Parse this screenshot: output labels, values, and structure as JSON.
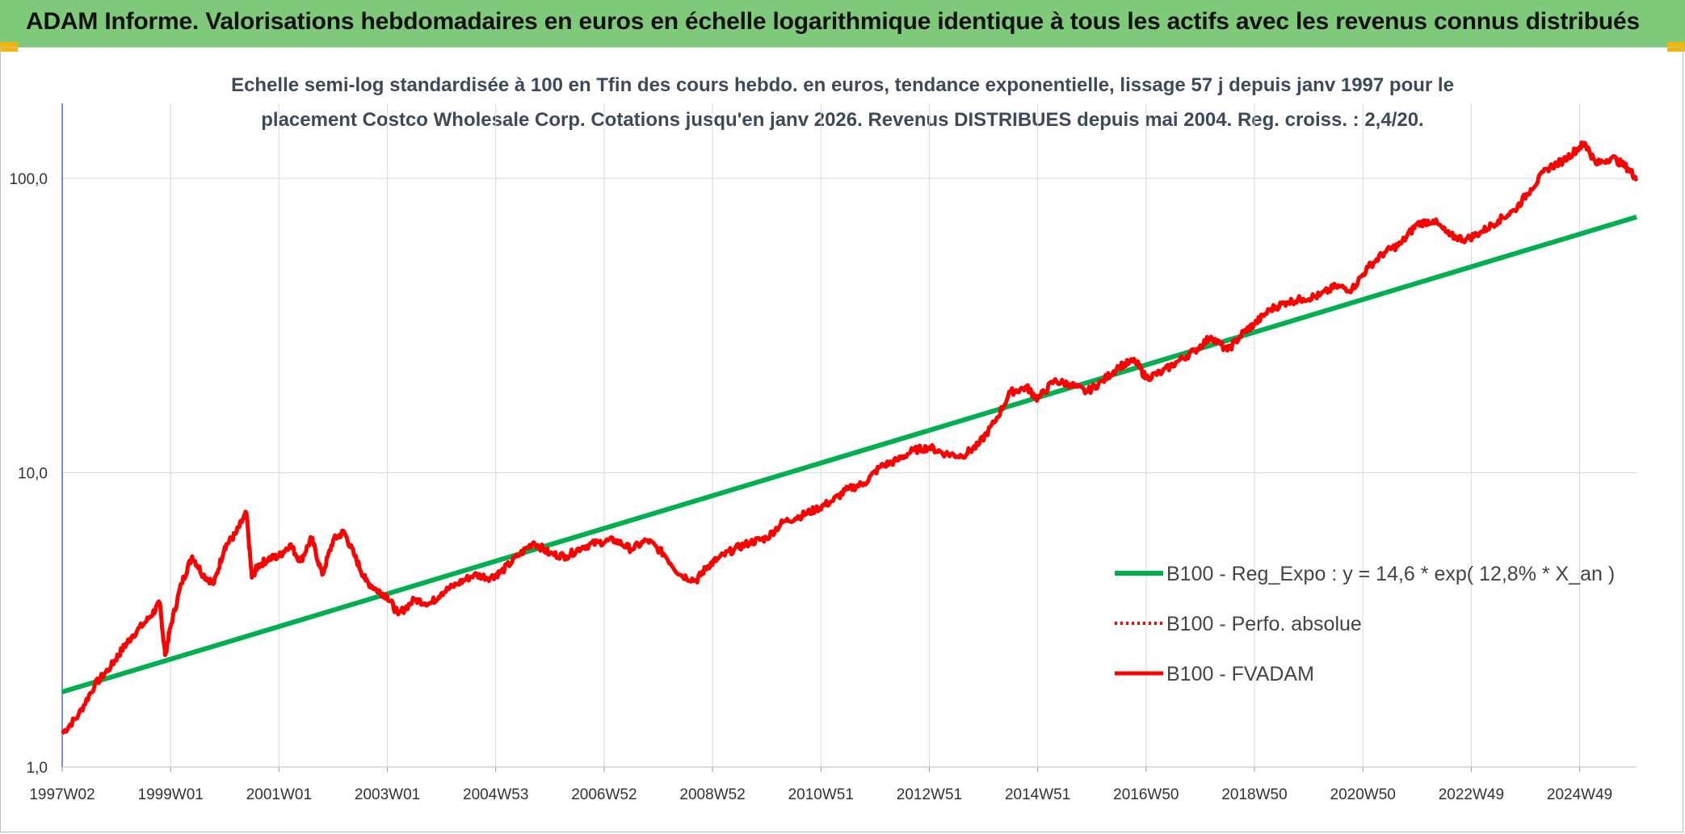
{
  "banner": {
    "title": "ADAM Informe. Valorisations hebdomadaires en euros en échelle logarithmique identique à tous les actifs avec les revenus connus distribués"
  },
  "colors": {
    "banner": "#7ec97a",
    "corner": "#f2b705",
    "trend": "#00b050",
    "price": "#ff0000"
  },
  "chart_data": {
    "type": "line",
    "title_line1": "Echelle semi-log standardisée à 100 en Tfin des cours hebdo. en euros, tendance exponentielle, lissage 57 j depuis janv 1997 pour le",
    "title_line2": "placement Costco Wholesale Corp. Cotations jusqu'en janv 2026. Revenus DISTRIBUES depuis mai 2004. Reg. croiss. : 2,4/20.",
    "y_scale": "log",
    "ylim": [
      1,
      180
    ],
    "y_ticks": [
      {
        "value": 100,
        "label": "100,0"
      },
      {
        "value": 10,
        "label": "10,0"
      },
      {
        "value": 1,
        "label": "1,0"
      }
    ],
    "xlim": [
      1997.0,
      2026.05
    ],
    "x_ticks": [
      {
        "x": 1997.0,
        "label": "1997W02"
      },
      {
        "x": 1999.0,
        "label": "1999W01"
      },
      {
        "x": 2001.0,
        "label": "2001W01"
      },
      {
        "x": 2003.0,
        "label": "2003W01"
      },
      {
        "x": 2005.0,
        "label": "2004W53"
      },
      {
        "x": 2007.0,
        "label": "2006W52"
      },
      {
        "x": 2009.0,
        "label": "2008W52"
      },
      {
        "x": 2011.0,
        "label": "2010W51"
      },
      {
        "x": 2013.0,
        "label": "2012W51"
      },
      {
        "x": 2015.0,
        "label": "2014W51"
      },
      {
        "x": 2017.0,
        "label": "2016W50"
      },
      {
        "x": 2019.0,
        "label": "2018W50"
      },
      {
        "x": 2021.0,
        "label": "2020W50"
      },
      {
        "x": 2023.0,
        "label": "2022W49"
      },
      {
        "x": 2025.0,
        "label": "2024W49"
      }
    ],
    "legend_position": "right",
    "series": [
      {
        "name": "B100 - Reg_Expo : y = 14,6 * exp( 12,8% *  X_an )",
        "style": "solid-green-thick",
        "x": [
          1997.0,
          2026.05
        ],
        "values": [
          1.8,
          74
        ]
      },
      {
        "name": "B100 - Perfo. absolue",
        "style": "dotted-red",
        "x": [],
        "values": []
      },
      {
        "name": "B100 - FVADAM",
        "style": "solid-red",
        "x": [
          1997.0,
          1997.3,
          1997.6,
          1997.9,
          1998.1,
          1998.3,
          1998.6,
          1998.8,
          1998.9,
          1999.0,
          1999.2,
          1999.4,
          1999.6,
          1999.8,
          2000.0,
          2000.2,
          2000.4,
          2000.5,
          2000.6,
          2000.8,
          2001.0,
          2001.2,
          2001.4,
          2001.6,
          2001.8,
          2002.0,
          2002.2,
          2002.4,
          2002.6,
          2002.8,
          2003.0,
          2003.2,
          2003.5,
          2003.8,
          2004.0,
          2004.3,
          2004.6,
          2004.9,
          2005.1,
          2005.4,
          2005.7,
          2006.0,
          2006.3,
          2006.6,
          2006.9,
          2007.2,
          2007.5,
          2007.8,
          2008.1,
          2008.4,
          2008.7,
          2008.9,
          2009.1,
          2009.4,
          2009.7,
          2010.0,
          2010.3,
          2010.6,
          2010.9,
          2011.2,
          2011.5,
          2011.8,
          2012.1,
          2012.4,
          2012.7,
          2013.0,
          2013.3,
          2013.6,
          2013.9,
          2014.2,
          2014.5,
          2014.8,
          2015.0,
          2015.3,
          2015.6,
          2015.9,
          2016.2,
          2016.5,
          2016.8,
          2017.0,
          2017.3,
          2017.6,
          2017.9,
          2018.2,
          2018.5,
          2018.8,
          2019.0,
          2019.3,
          2019.6,
          2019.9,
          2020.2,
          2020.5,
          2020.8,
          2021.1,
          2021.4,
          2021.7,
          2022.0,
          2022.3,
          2022.6,
          2022.9,
          2023.2,
          2023.5,
          2023.8,
          2024.1,
          2024.4,
          2024.7,
          2025.0,
          2025.1,
          2025.3,
          2025.6,
          2025.9,
          2026.05
        ],
        "values": [
          1.3,
          1.5,
          1.9,
          2.2,
          2.5,
          2.8,
          3.2,
          3.6,
          2.4,
          3.0,
          4.2,
          5.2,
          4.5,
          4.2,
          5.6,
          6.2,
          7.3,
          4.4,
          4.8,
          5.1,
          5.2,
          5.7,
          5.0,
          6.0,
          4.5,
          5.9,
          6.3,
          5.2,
          4.3,
          4.0,
          3.8,
          3.3,
          3.7,
          3.6,
          3.9,
          4.2,
          4.5,
          4.4,
          4.6,
          5.2,
          5.8,
          5.3,
          5.2,
          5.6,
          5.8,
          5.9,
          5.5,
          5.9,
          5.3,
          4.5,
          4.3,
          4.8,
          5.1,
          5.5,
          5.8,
          6.0,
          6.8,
          7.1,
          7.5,
          8.0,
          8.8,
          9.2,
          10.5,
          11.0,
          11.9,
          12.2,
          11.6,
          11.4,
          12.4,
          14.8,
          18.8,
          19.5,
          17.8,
          20.5,
          20.0,
          18.8,
          20.5,
          23.0,
          24.0,
          21.0,
          22.0,
          24.0,
          26.0,
          29.0,
          26.0,
          30.0,
          32.0,
          36.0,
          38.0,
          39.0,
          40.0,
          43.0,
          42.0,
          50.0,
          56.0,
          60.0,
          70.0,
          72.0,
          64.0,
          62.0,
          66.0,
          72.0,
          78.0,
          92.0,
          108.0,
          115.0,
          128.0,
          132.0,
          112.0,
          118.0,
          108.0,
          100.0
        ]
      }
    ]
  }
}
